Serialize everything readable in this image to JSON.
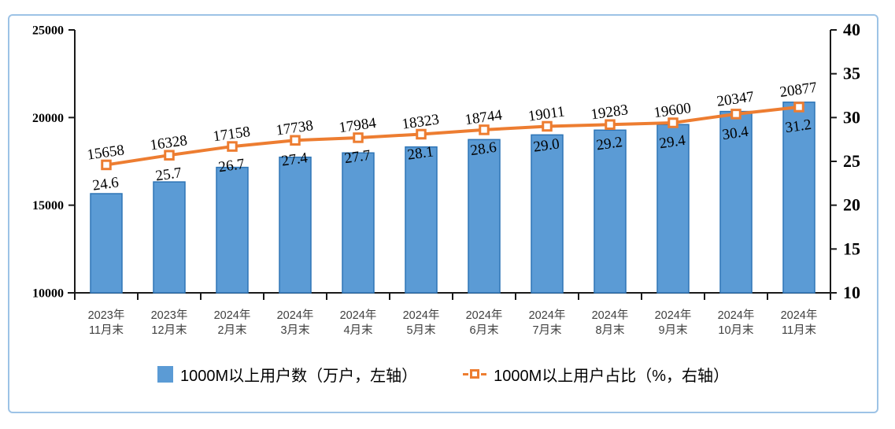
{
  "chart_data": {
    "type": "combo-bar-line",
    "title": "",
    "categories": [
      {
        "line1": "2023年",
        "line2": "11月末"
      },
      {
        "line1": "2023年",
        "line2": "12月末"
      },
      {
        "line1": "2024年",
        "line2": "2月末"
      },
      {
        "line1": "2024年",
        "line2": "3月末"
      },
      {
        "line1": "2024年",
        "line2": "4月末"
      },
      {
        "line1": "2024年",
        "line2": "5月末"
      },
      {
        "line1": "2024年",
        "line2": "6月末"
      },
      {
        "line1": "2024年",
        "line2": "7月末"
      },
      {
        "line1": "2024年",
        "line2": "8月末"
      },
      {
        "line1": "2024年",
        "line2": "9月末"
      },
      {
        "line1": "2024年",
        "line2": "10月末"
      },
      {
        "line1": "2024年",
        "line2": "11月末"
      }
    ],
    "series": [
      {
        "name": "1000M以上用户数（万户，左轴）",
        "type": "bar",
        "axis": "left",
        "values": [
          15658,
          16328,
          17158,
          17738,
          17984,
          18323,
          18744,
          19011,
          19283,
          19600,
          20347,
          20877
        ]
      },
      {
        "name": "1000M以上用户占比（%，右轴）",
        "type": "line",
        "axis": "right",
        "values": [
          24.6,
          25.7,
          26.7,
          27.4,
          27.7,
          28.1,
          28.6,
          29.0,
          29.2,
          29.4,
          30.4,
          31.2
        ]
      }
    ],
    "left_axis": {
      "min": 10000,
      "max": 25000,
      "ticks": [
        10000,
        15000,
        20000,
        25000
      ]
    },
    "right_axis": {
      "min": 10,
      "max": 40,
      "ticks": [
        10,
        15,
        20,
        25,
        30,
        35,
        40
      ]
    },
    "grid": false,
    "legend_position": "bottom"
  },
  "legend": {
    "bar_label": "1000M以上用户数（万户，左轴）",
    "line_label": "1000M以上用户占比（%，右轴）"
  },
  "colors": {
    "bar_fill": "#5B9BD5",
    "bar_border": "#2E75B6",
    "line": "#ED7D31",
    "frame_border": "#9DC3E6",
    "axis": "#1a1a1a",
    "x_label": "#3F3F3F"
  }
}
